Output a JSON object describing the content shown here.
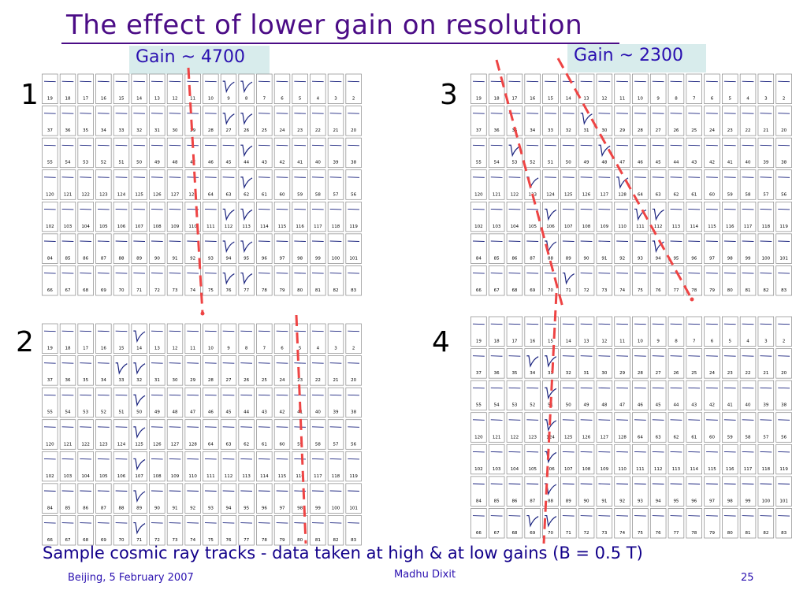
{
  "slide": {
    "title": "The effect of lower gain on resolution",
    "gain_high": "Gain ~ 4700",
    "gain_low": "Gain ~ 2300",
    "caption": "Sample cosmic ray tracks - data taken at high & at low gains (B = 0.5 T)",
    "footer_left": "Beijing, 5 February 2007",
    "footer_center": "Madhu Dixit",
    "footer_right": "25"
  },
  "panels": [
    {
      "label": "1",
      "hits": [
        [
          0,
          11
        ],
        [
          1,
          11
        ],
        [
          2,
          11
        ],
        [
          3,
          11
        ],
        [
          4,
          11
        ],
        [
          5,
          11
        ],
        [
          6,
          11
        ],
        [
          0,
          10
        ],
        [
          1,
          10
        ],
        [
          4,
          10
        ],
        [
          6,
          10
        ],
        [
          5,
          10
        ]
      ]
    },
    {
      "label": "2",
      "hits": [
        [
          0,
          5
        ],
        [
          1,
          5
        ],
        [
          2,
          5
        ],
        [
          3,
          5
        ],
        [
          4,
          5
        ],
        [
          5,
          5
        ],
        [
          6,
          5
        ],
        [
          1,
          4
        ]
      ]
    },
    {
      "label": "3",
      "hits": [
        [
          2,
          2
        ],
        [
          3,
          3
        ],
        [
          4,
          4
        ],
        [
          5,
          4
        ],
        [
          6,
          5
        ],
        [
          1,
          6
        ],
        [
          2,
          7
        ],
        [
          3,
          8
        ],
        [
          4,
          9
        ],
        [
          4,
          10
        ],
        [
          5,
          10
        ]
      ]
    },
    {
      "label": "4",
      "hits": [
        [
          1,
          3
        ],
        [
          1,
          4
        ],
        [
          2,
          4
        ],
        [
          3,
          4
        ],
        [
          4,
          4
        ],
        [
          5,
          4
        ],
        [
          6,
          3
        ],
        [
          6,
          4
        ]
      ]
    }
  ],
  "pad_labels": [
    [
      "19",
      "18",
      "17",
      "16",
      "15",
      "14",
      "13",
      "12",
      "11",
      "10",
      "9",
      "8",
      "7",
      "6",
      "5",
      "4",
      "3",
      "2"
    ],
    [
      "37",
      "36",
      "35",
      "34",
      "33",
      "32",
      "31",
      "30",
      "29",
      "28",
      "27",
      "26",
      "25",
      "24",
      "23",
      "22",
      "21",
      "20"
    ],
    [
      "55",
      "54",
      "53",
      "52",
      "51",
      "50",
      "49",
      "48",
      "47",
      "46",
      "45",
      "44",
      "43",
      "42",
      "41",
      "40",
      "39",
      "38"
    ],
    [
      "120",
      "121",
      "122",
      "123",
      "124",
      "125",
      "126",
      "127",
      "128",
      "64",
      "63",
      "62",
      "61",
      "60",
      "59",
      "58",
      "57",
      "56"
    ],
    [
      "102",
      "103",
      "104",
      "105",
      "106",
      "107",
      "108",
      "109",
      "110",
      "111",
      "112",
      "113",
      "114",
      "115",
      "116",
      "117",
      "118",
      "119"
    ],
    [
      "84",
      "85",
      "86",
      "87",
      "88",
      "89",
      "90",
      "91",
      "92",
      "93",
      "94",
      "95",
      "96",
      "97",
      "98",
      "99",
      "100",
      "101"
    ],
    [
      "66",
      "67",
      "68",
      "69",
      "70",
      "71",
      "72",
      "73",
      "74",
      "75",
      "76",
      "77",
      "78",
      "79",
      "80",
      "81",
      "82",
      "83"
    ]
  ],
  "colors": {
    "trace": "#1a237e",
    "grid": "#888888",
    "track": "#ee4444",
    "title": "#4b0c86"
  }
}
